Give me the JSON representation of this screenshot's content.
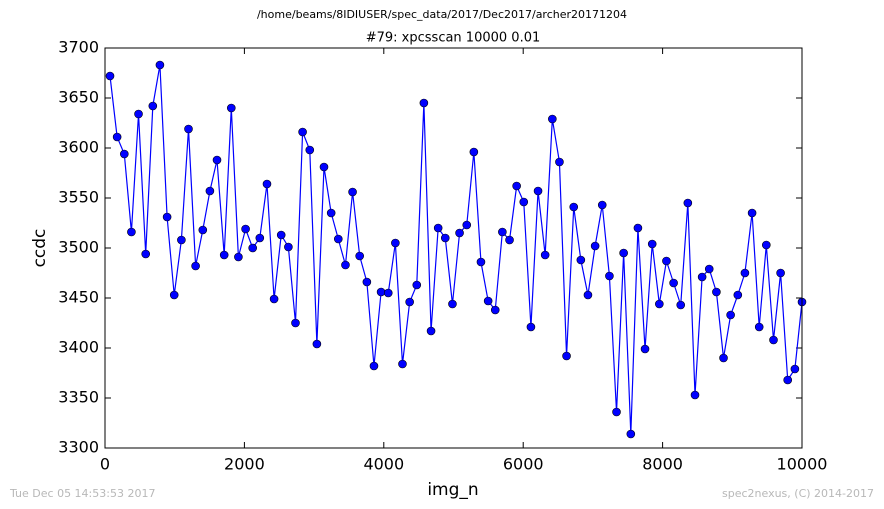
{
  "chart_data": {
    "type": "line",
    "suptitle": "/home/beams/8IDIUSER/spec_data/2017/Dec2017/archer20171204",
    "title": "#79: xpcsscan 10000 0.01",
    "x_label": "img_n",
    "y_label": "ccdc",
    "annotations": [
      "Tue Dec 05 14:53:53 2017",
      "spec2nexus, (C) 2014-2017"
    ],
    "xlim": [
      0,
      10000
    ],
    "xticks": [
      0,
      2000,
      4000,
      6000,
      8000,
      10000
    ],
    "ylim": [
      3300,
      3700
    ],
    "yticks": [
      3300,
      3350,
      3400,
      3450,
      3500,
      3550,
      3600,
      3650,
      3700
    ],
    "grid": false,
    "x": [
      72,
      174,
      277,
      379,
      481,
      584,
      686,
      788,
      891,
      993,
      1096,
      1198,
      1300,
      1403,
      1505,
      1607,
      1710,
      1812,
      1914,
      2017,
      2119,
      2221,
      2324,
      2426,
      2528,
      2631,
      2733,
      2835,
      2938,
      3040,
      3142,
      3245,
      3347,
      3450,
      3552,
      3654,
      3757,
      3859,
      3961,
      4064,
      4166,
      4268,
      4371,
      4473,
      4575,
      4678,
      4780,
      4882,
      4985,
      5087,
      5190,
      5292,
      5394,
      5497,
      5599,
      5701,
      5804,
      5906,
      6008,
      6111,
      6213,
      6315,
      6418,
      6520,
      6622,
      6725,
      6827,
      6929,
      7032,
      7134,
      7237,
      7339,
      7441,
      7544,
      7646,
      7748,
      7851,
      7953,
      8055,
      8158,
      8260,
      8362,
      8465,
      8567,
      8669,
      8772,
      8874,
      8976,
      9079,
      9181,
      9284,
      9386,
      9488,
      9591,
      9693,
      9795,
      9898,
      10000
    ],
    "series": [
      {
        "color": "#0000ff",
        "values": [
          3672,
          3611,
          3594,
          3516,
          3634,
          3494,
          3642,
          3683,
          3531,
          3453,
          3508,
          3619,
          3482,
          3518,
          3557,
          3588,
          3493,
          3640,
          3491,
          3519,
          3500,
          3510,
          3564,
          3449,
          3513,
          3501,
          3425,
          3616,
          3598,
          3404,
          3581,
          3535,
          3509,
          3483,
          3556,
          3492,
          3466,
          3382,
          3456,
          3455,
          3505,
          3384,
          3446,
          3463,
          3645,
          3417,
          3520,
          3510,
          3444,
          3515,
          3523,
          3596,
          3486,
          3447,
          3438,
          3516,
          3508,
          3562,
          3546,
          3421,
          3557,
          3493,
          3629,
          3586,
          3392,
          3541,
          3488,
          3453,
          3502,
          3543,
          3472,
          3336,
          3495,
          3314,
          3520,
          3399,
          3504,
          3444,
          3487,
          3465,
          3443,
          3545,
          3353,
          3471,
          3479,
          3456,
          3390,
          3433,
          3453,
          3475,
          3535,
          3421,
          3503,
          3408,
          3475,
          3368,
          3379,
          3446
        ]
      }
    ]
  }
}
